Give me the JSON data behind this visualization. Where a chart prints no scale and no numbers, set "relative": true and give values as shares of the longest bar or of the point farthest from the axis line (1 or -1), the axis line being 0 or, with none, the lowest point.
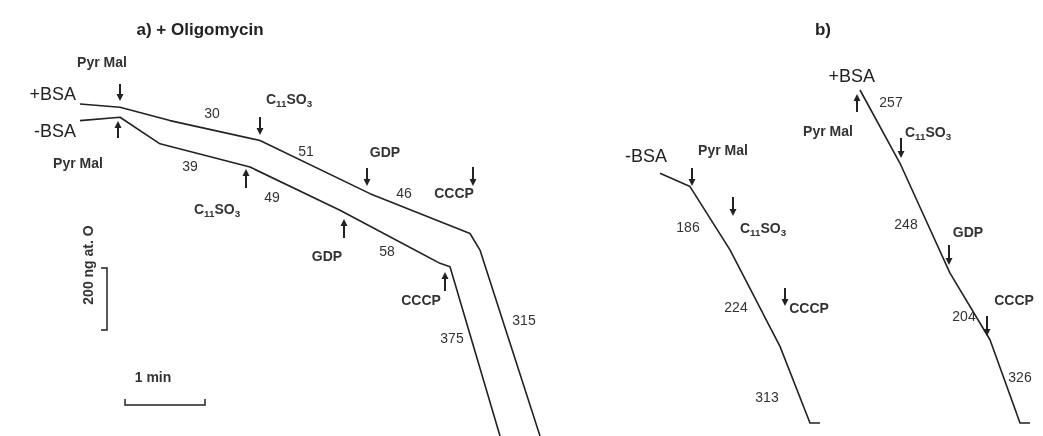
{
  "chart_data": [
    {
      "type": "line",
      "title": "a) + Oligomycin",
      "relative": true,
      "legend": "left",
      "categories": [
        null,
        null,
        null,
        null,
        null,
        null,
        null,
        null,
        null,
        null,
        null,
        null,
        null,
        null,
        null,
        null,
        null,
        null,
        null,
        null,
        null,
        null,
        null,
        null,
        null,
        null,
        null,
        null,
        null,
        null,
        null,
        null,
        null,
        null,
        null,
        null,
        null,
        null,
        null,
        null,
        null,
        null,
        null,
        null,
        null,
        null,
        null,
        null,
        null
      ],
      "series": [
        {
          "name": "+BSA",
          "color": "#222222",
          "values": [
            null,
            1,
            null,
            null,
            null,
            0.99,
            null,
            null,
            null,
            null,
            0.95,
            null,
            null,
            null,
            null,
            null,
            null,
            null,
            null,
            0.89,
            null,
            null,
            null,
            null,
            null,
            null,
            null,
            null,
            null,
            null,
            0.73,
            null,
            null,
            null,
            null,
            null,
            null,
            null,
            null,
            null,
            0.61,
            0.56,
            null,
            null,
            null,
            null,
            null,
            0,
            null
          ]
        },
        {
          "name": "-BSA",
          "color": "#222222",
          "values": [
            null,
            0.95,
            null,
            null,
            null,
            0.96,
            null,
            null,
            null,
            0.88,
            null,
            null,
            null,
            null,
            null,
            null,
            null,
            null,
            0.81,
            null,
            null,
            null,
            null,
            null,
            null,
            null,
            null,
            0.68,
            null,
            null,
            null,
            null,
            null,
            null,
            null,
            null,
            null,
            0.52,
            0.51,
            null,
            null,
            null,
            null,
            0,
            null,
            null,
            null,
            null,
            null
          ]
        }
      ],
      "annotations": [
        "Pyr Mal",
        "Pyr Mal",
        "30",
        "C$_{11}$SO$_{3}$",
        "51",
        "GDP",
        "46",
        "CCCP",
        "39",
        "C$_{11}$SO$_{3}$",
        "49",
        "GDP",
        "58",
        "CCCP",
        "375",
        "315",
        "200 ng at. O",
        "1 min"
      ]
    },
    {
      "type": "line",
      "title": "b)",
      "relative": true,
      "categories": [
        null,
        null,
        null,
        null,
        null,
        null,
        null,
        null,
        null,
        null,
        null,
        null,
        null,
        null,
        null,
        null,
        null,
        null,
        null,
        null,
        null,
        null,
        null,
        null,
        null,
        null,
        null,
        null,
        null,
        null,
        null,
        null,
        null,
        null,
        null,
        null,
        null,
        null,
        null
      ],
      "series": [
        {
          "name": "+BSA",
          "color": "#222222",
          "values": [
            null,
            null,
            null,
            null,
            null,
            null,
            null,
            null,
            null,
            null,
            null,
            null,
            null,
            null,
            null,
            null,
            null,
            null,
            null,
            null,
            null,
            1,
            null,
            null,
            null,
            0.78,
            null,
            null,
            null,
            null,
            0.45,
            null,
            null,
            null,
            0.25,
            null,
            null,
            0,
            0
          ]
        },
        {
          "name": "-BSA",
          "color": "#222222",
          "values": [
            null,
            0.75,
            null,
            null,
            0.71,
            null,
            null,
            null,
            0.52,
            null,
            null,
            null,
            null,
            0.23,
            null,
            null,
            0,
            0,
            null,
            null,
            null,
            null,
            null,
            null,
            null,
            null,
            null,
            null,
            null,
            null,
            null,
            null,
            null,
            null,
            null,
            null,
            null,
            null,
            null
          ]
        }
      ],
      "annotations": [
        "Pyr Mal",
        "186",
        "C$_{11}$SO$_{3}$",
        "224",
        "CCCP",
        "313",
        "Pyr Mal",
        "257",
        "C$_{11}$SO$_{3}$",
        "248",
        "GDP",
        "204",
        "CCCP",
        "326"
      ]
    }
  ]
}
